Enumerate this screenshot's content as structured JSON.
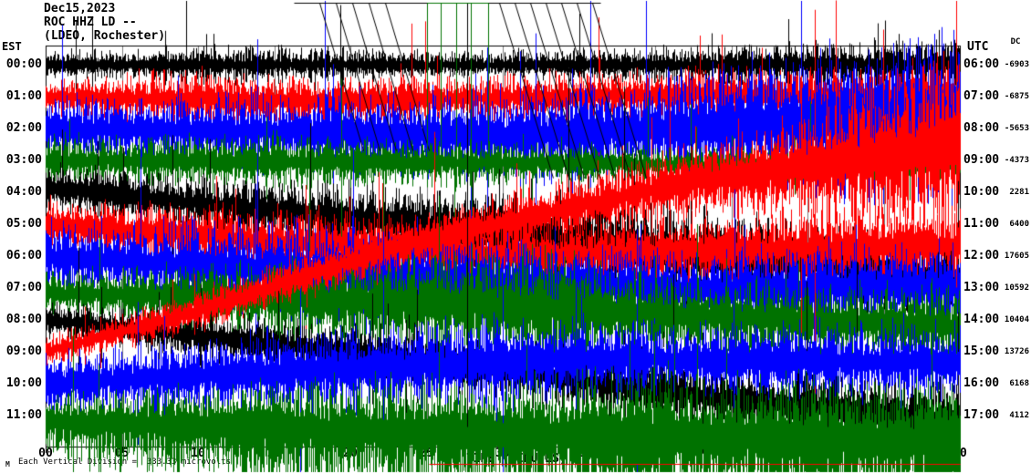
{
  "header": {
    "date": "Dec15,2023",
    "station_id": "ROC HHZ LD --",
    "station_location": "(LDEO, Rochester)"
  },
  "axes": {
    "left": {
      "label": "EST"
    },
    "right": {
      "label": "UTC"
    },
    "dc": {
      "label": "DC"
    },
    "bottom": {
      "label": "TIME (MINUTES)",
      "ticks": [
        "00",
        "05",
        "10",
        "15",
        "20",
        "25",
        "30",
        "35",
        "40",
        "45",
        "50",
        "55",
        "60"
      ]
    }
  },
  "footer": {
    "scale_note": "Each Vertical Division =  333.33 microvolts",
    "corner_mark": "M"
  },
  "colors": {
    "black": "#000000",
    "red": "#ff0000",
    "blue": "#0000ff",
    "green": "#007200",
    "grid": "#7f7f7f",
    "background": "#ffffff"
  },
  "chart_data": {
    "type": "line",
    "subtype": "seismogram-helicorder",
    "title": "ROC HHZ LD -- (LDEO, Rochester) Dec15,2023",
    "xlabel": "TIME (MINUTES)",
    "x_range_minutes": [
      0,
      60
    ],
    "x_tick_interval_minutes": 5,
    "minutes_per_row": 60,
    "rows_total": 12,
    "vertical_division_microvolts": 333.33,
    "grid": "vertical gray lines every 5 minutes",
    "legend_position": "none",
    "rows": [
      {
        "est": "00:00",
        "utc": "06:00",
        "dc": -6903,
        "color": "black"
      },
      {
        "est": "01:00",
        "utc": "07:00",
        "dc": -6875,
        "color": "red"
      },
      {
        "est": "02:00",
        "utc": "08:00",
        "dc": -5653,
        "color": "blue"
      },
      {
        "est": "03:00",
        "utc": "09:00",
        "dc": -4373,
        "color": "green"
      },
      {
        "est": "04:00",
        "utc": "10:00",
        "dc": 2281,
        "color": "black"
      },
      {
        "est": "05:00",
        "utc": "11:00",
        "dc": 6400,
        "color": "red"
      },
      {
        "est": "06:00",
        "utc": "12:00",
        "dc": 17605,
        "color": "blue"
      },
      {
        "est": "07:00",
        "utc": "13:00",
        "dc": 10592,
        "color": "green"
      },
      {
        "est": "08:00",
        "utc": "14:00",
        "dc": 10404,
        "color": "black"
      },
      {
        "est": "09:00",
        "utc": "15:00",
        "dc": 13726,
        "color": "red"
      },
      {
        "est": "10:00",
        "utc": "16:00",
        "dc": 6168,
        "color": "blue"
      },
      {
        "est": "11:00",
        "utc": "17:00",
        "dc": 4112,
        "color": "green"
      }
    ]
  }
}
